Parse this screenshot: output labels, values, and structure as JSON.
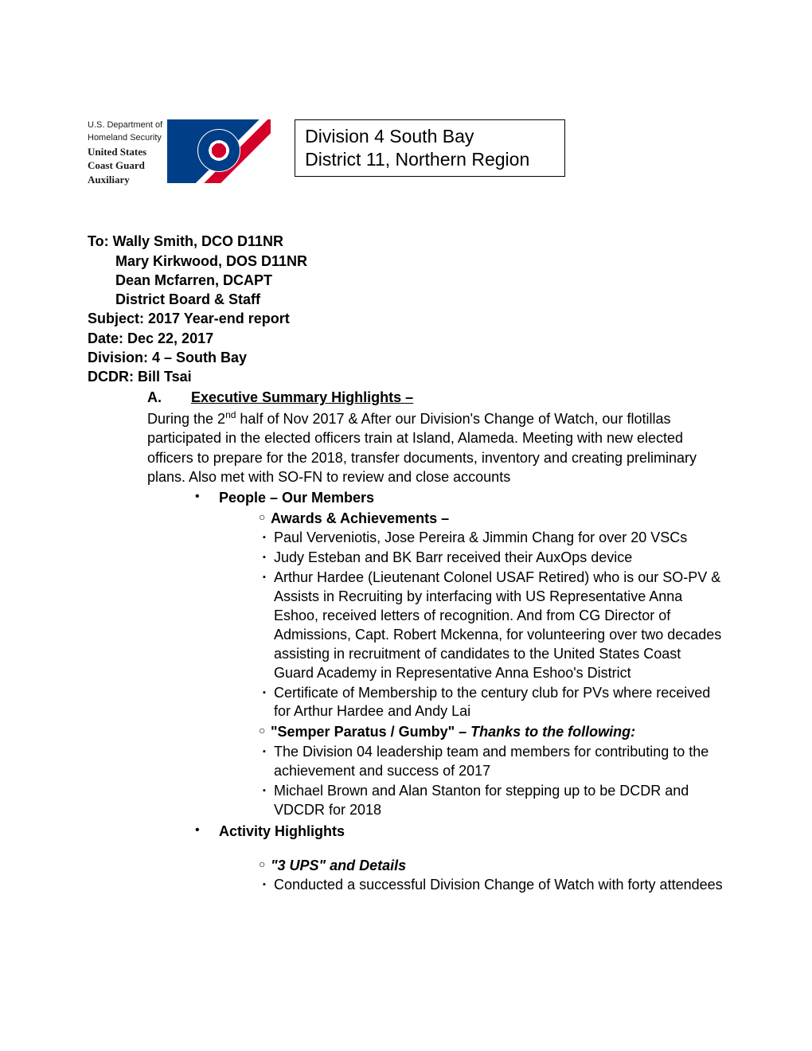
{
  "logo": {
    "dept_line1": "U.S. Department of",
    "dept_line2": "Homeland Security",
    "org_line1": "United States",
    "org_line2": "Coast Guard",
    "org_line3": "Auxiliary"
  },
  "title_box": {
    "line1": "Division 4 South Bay",
    "line2": "District 11, Northern Region"
  },
  "memo": {
    "to_label": "To: Wally Smith, DCO D11NR",
    "to_2": "Mary Kirkwood, DOS D11NR",
    "to_3": "Dean Mcfarren, DCAPT",
    "to_4": "District Board & Staff",
    "subject": "Subject: 2017 Year-end report",
    "date": "Date: Dec 22, 2017",
    "division": "Division: 4 – South Bay",
    "dcdr": "DCDR: Bill Tsai"
  },
  "section_a": {
    "letter": "A.",
    "title": "Executive Summary Highlights –",
    "body_pre": "During the 2",
    "body_sup": "nd",
    "body_post": " half of Nov 2017 & After our Division's Change of Watch, our flotillas participated in the elected officers train at Island, Alameda. Meeting with new elected officers to prepare for the 2018, transfer documents, inventory and creating preliminary plans. Also met with SO-FN to review and close accounts"
  },
  "people": {
    "heading": "People – Our Members",
    "awards_heading": "Awards & Achievements –",
    "awards": [
      "Paul Verveniotis, Jose Pereira & Jimmin Chang for over 20 VSCs",
      "Judy Esteban and BK Barr received their AuxOps device",
      "Arthur Hardee (Lieutenant Colonel USAF Retired) who is our SO-PV & Assists in Recruiting by interfacing with US Representative Anna Eshoo, received letters of recognition. And from CG Director of Admissions, Capt. Robert Mckenna, for volunteering over two decades assisting in recruitment of candidates to the United States Coast Guard Academy in Representative Anna Eshoo's District",
      "Certificate of Membership to the century club for PVs where received for Arthur Hardee and Andy Lai"
    ],
    "semper_heading_bold": "\"Semper Paratus / Gumby\" – ",
    "semper_heading_italic": "Thanks to the following:",
    "semper": [
      "The Division 04 leadership team and members for contributing to the achievement and success of 2017",
      "Michael Brown and Alan Stanton for stepping up to be DCDR and VDCDR for 2018"
    ]
  },
  "activity": {
    "heading": "Activity Highlights",
    "ups_heading": "\"3 UPS\" and Details",
    "items": [
      "Conducted a successful Division Change of Watch with forty attendees"
    ]
  },
  "style": {
    "page_bg": "#ffffff",
    "text_color": "#000000",
    "logo_blue": "#003f87",
    "logo_red": "#d4002a",
    "body_fontsize": 18,
    "title_fontsize": 23
  }
}
